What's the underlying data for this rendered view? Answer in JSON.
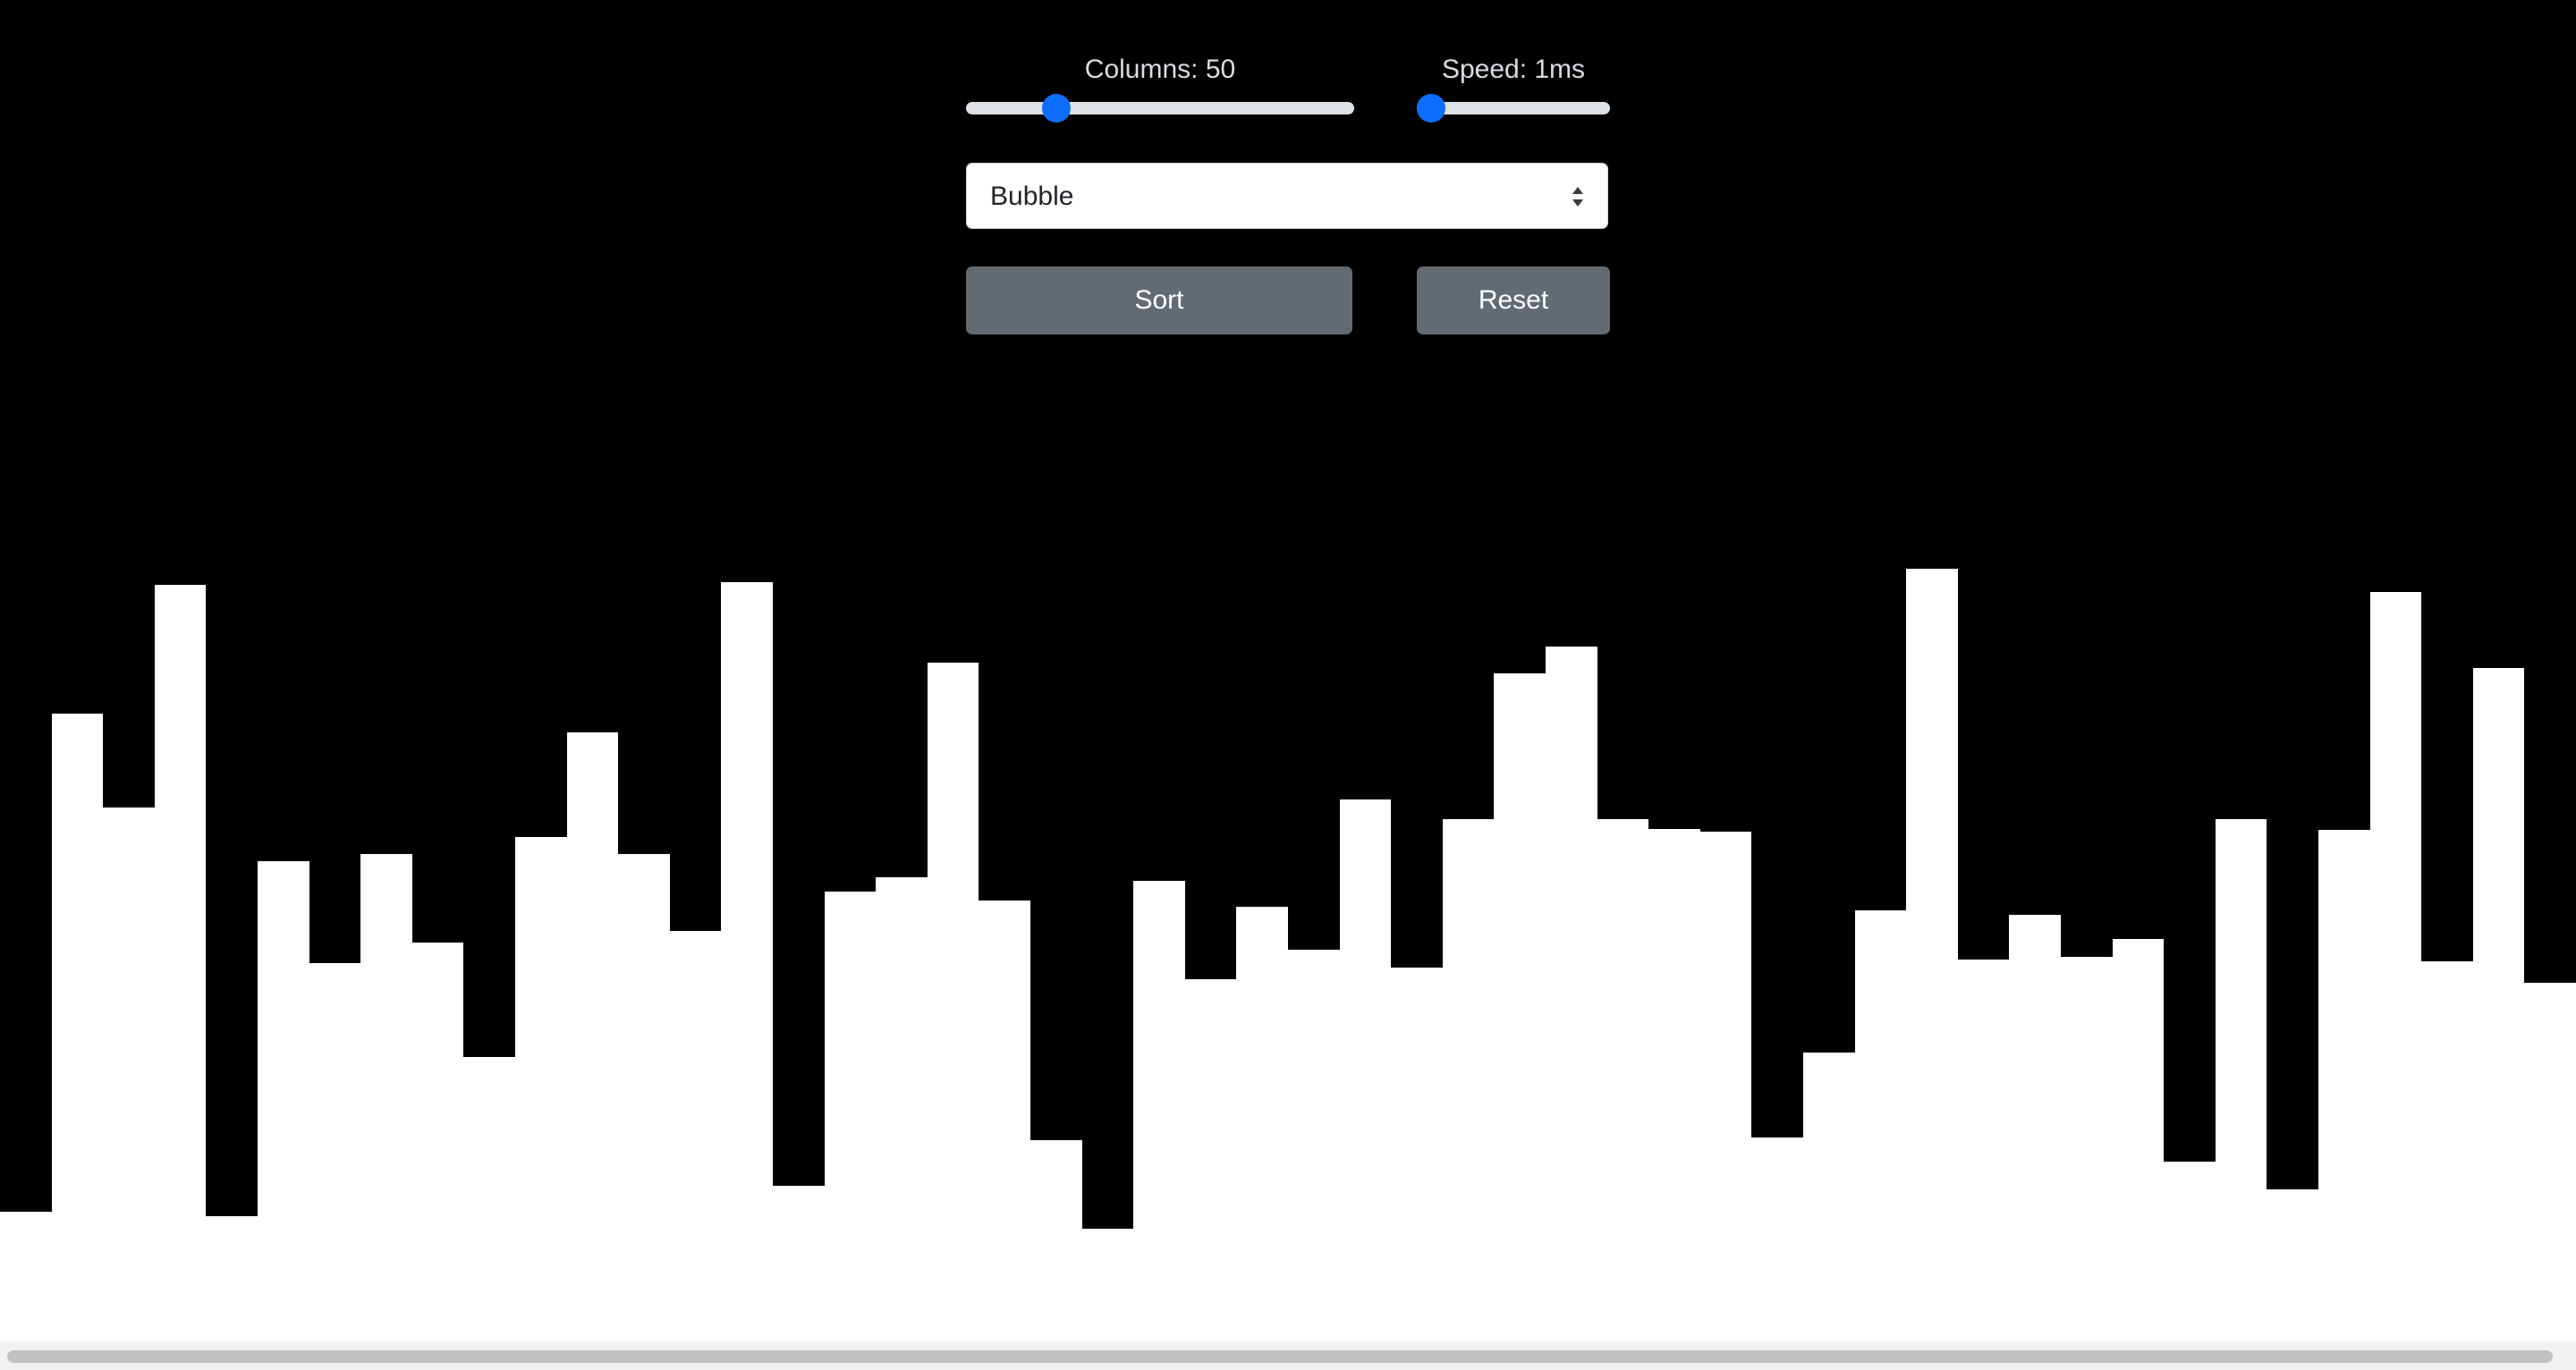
{
  "controls": {
    "columns": {
      "label": "Columns: 50",
      "min": 10,
      "max": 200,
      "value": 50
    },
    "speed": {
      "label": "Speed: 1ms",
      "min": 1,
      "max": 100,
      "value": 1
    },
    "algorithm": {
      "selected": "Bubble"
    },
    "sort_label": "Sort",
    "reset_label": "Reset"
  },
  "colors": {
    "background": "#000000",
    "bar": "#ffffff",
    "slider_thumb": "#0d6efd",
    "button": "#626b72"
  },
  "bars": {
    "max_value": 100,
    "values": [
      9.7,
      46.8,
      39.8,
      56.4,
      9.3,
      35.8,
      28.2,
      36.3,
      29.7,
      21.2,
      37.6,
      45.4,
      36.3,
      30.6,
      56.6,
      11.6,
      33.5,
      34.6,
      50.6,
      32.9,
      15.0,
      8.4,
      34.3,
      27.0,
      32.4,
      29.2,
      40.4,
      27.9,
      38.9,
      49.8,
      51.8,
      38.9,
      38.2,
      38.0,
      15.2,
      21.5,
      32.1,
      57.6,
      28.5,
      31.8,
      28.7,
      30.0,
      13.4,
      38.9,
      11.3,
      38.1,
      55.9,
      28.3,
      50.2,
      26.7
    ]
  }
}
